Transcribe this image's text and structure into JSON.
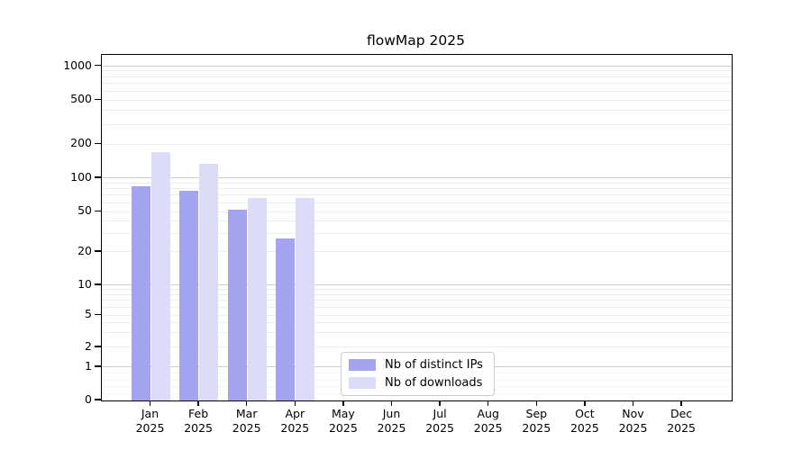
{
  "chart_data": {
    "type": "bar",
    "title": "flowMap 2025",
    "categories": [
      "Jan 2025",
      "Feb 2025",
      "Mar 2025",
      "Apr 2025",
      "May 2025",
      "Jun 2025",
      "Jul 2025",
      "Aug 2025",
      "Sep 2025",
      "Oct 2025",
      "Nov 2025",
      "Dec 2025"
    ],
    "x_tick_months": [
      "Jan",
      "Feb",
      "Mar",
      "Apr",
      "May",
      "Jun",
      "Jul",
      "Aug",
      "Sep",
      "Oct",
      "Nov",
      "Dec"
    ],
    "x_tick_year": "2025",
    "series": [
      {
        "name": "Nb of distinct IPs",
        "color": "#a3a3ef",
        "values": [
          85,
          77,
          52,
          27,
          0,
          0,
          0,
          0,
          0,
          0,
          0,
          0
        ]
      },
      {
        "name": "Nb of downloads",
        "color": "#dcdcf8",
        "values": [
          170,
          135,
          67,
          67,
          0,
          0,
          0,
          0,
          0,
          0,
          0,
          0
        ]
      }
    ],
    "y_ticks": [
      0,
      1,
      2,
      5,
      10,
      20,
      50,
      100,
      200,
      500,
      1000
    ],
    "y_scale": "symlog",
    "ylim": [
      0,
      1300
    ],
    "grid": true,
    "legend_position": "lower center",
    "colors": {
      "axis": "#000000",
      "major_grid": "#cccccc",
      "minor_grid": "#ededed"
    }
  }
}
